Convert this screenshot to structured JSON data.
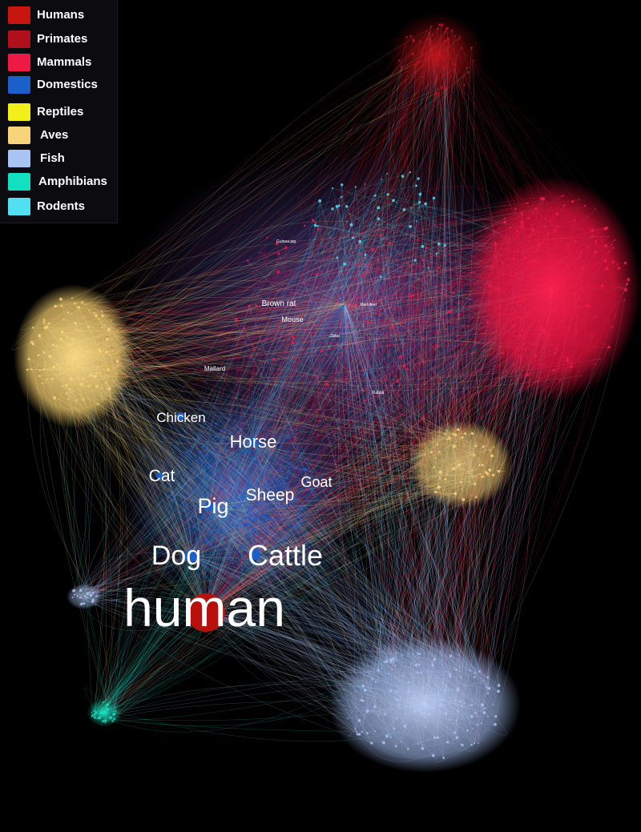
{
  "legend": {
    "items": [
      {
        "label": "Humans",
        "color": "#c8160f"
      },
      {
        "label": "Primates",
        "color": "#b0101c"
      },
      {
        "label": "Mammals",
        "color": "#ee1a45"
      },
      {
        "label": "Domestics",
        "color": "#1b5fcb"
      },
      {
        "label": "Reptiles",
        "color": "#f2ef1b"
      },
      {
        "label": "Aves",
        "color": "#f7d37a"
      },
      {
        "label": "Fish",
        "color": "#a9c3f5"
      },
      {
        "label": "Amphibians",
        "color": "#12e0c0"
      },
      {
        "label": "Rodents",
        "color": "#52dff2"
      }
    ]
  },
  "labels": {
    "human": "human",
    "dog": "Dog",
    "cattle": "Cattle",
    "pig": "Pig",
    "sheep": "Sheep",
    "goat": "Goat",
    "cat": "Cat",
    "horse": "Horse",
    "chicken": "Chicken",
    "brown_rat": "Brown rat",
    "mouse": "Mouse",
    "mallard": "Mallard",
    "guinea_pig": "Guinea pig",
    "red_deer": "Red deer",
    "zebu": "Zebu",
    "rabbit": "Rabbit"
  }
}
